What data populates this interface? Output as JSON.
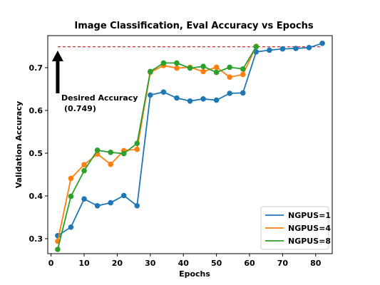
{
  "chart_data": {
    "type": "line",
    "title": "Image Classification, Eval Accuracy vs Epochs",
    "xlabel": "Epochs",
    "ylabel": "Validation Accuracy",
    "xlim": [
      -1,
      85
    ],
    "ylim": [
      0.265,
      0.775
    ],
    "xticks": [
      0,
      10,
      20,
      30,
      40,
      50,
      60,
      70,
      80
    ],
    "yticks": [
      0.3,
      0.4,
      0.5,
      0.6,
      0.7
    ],
    "ytick_labels": [
      "0.3",
      "0.4",
      "0.5",
      "0.6",
      "0.7"
    ],
    "grid": false,
    "legend_position": "lower-right",
    "series": [
      {
        "name": "NGPUS=1",
        "color": "#1f77b4",
        "x": [
          2,
          6,
          10,
          14,
          18,
          22,
          26,
          30,
          34,
          38,
          42,
          46,
          50,
          54,
          58,
          62,
          66,
          70,
          74,
          78,
          82
        ],
        "values": [
          0.307,
          0.327,
          0.393,
          0.377,
          0.384,
          0.401,
          0.377,
          0.636,
          0.643,
          0.629,
          0.622,
          0.627,
          0.624,
          0.64,
          0.641,
          0.737,
          0.741,
          0.744,
          0.745,
          0.747,
          0.757
        ]
      },
      {
        "name": "NGPUS=4",
        "color": "#ff7f0e",
        "x": [
          2,
          6,
          10,
          14,
          18,
          22,
          26,
          30,
          34,
          38,
          42,
          46,
          50,
          54,
          58,
          62
        ],
        "values": [
          0.294,
          0.441,
          0.473,
          0.498,
          0.474,
          0.506,
          0.509,
          0.689,
          0.705,
          0.699,
          0.701,
          0.691,
          0.701,
          0.678,
          0.684,
          0.75
        ]
      },
      {
        "name": "NGPUS=8",
        "color": "#2ca02c",
        "x": [
          2,
          6,
          10,
          14,
          18,
          22,
          26,
          30,
          34,
          38,
          42,
          46,
          50,
          54,
          58,
          62
        ],
        "values": [
          0.275,
          0.399,
          0.459,
          0.507,
          0.502,
          0.499,
          0.523,
          0.691,
          0.711,
          0.711,
          0.699,
          0.703,
          0.689,
          0.701,
          0.697,
          0.749
        ]
      }
    ],
    "target_line": {
      "value": 0.749,
      "x_range": [
        2,
        82
      ],
      "color": "#d62728",
      "style": "dashed"
    },
    "annotation": {
      "line1": "Desired Accuracy",
      "line2": "(0.749)",
      "arrow_x": 2,
      "arrow_from_y": 0.64,
      "arrow_to_y": 0.74
    }
  }
}
